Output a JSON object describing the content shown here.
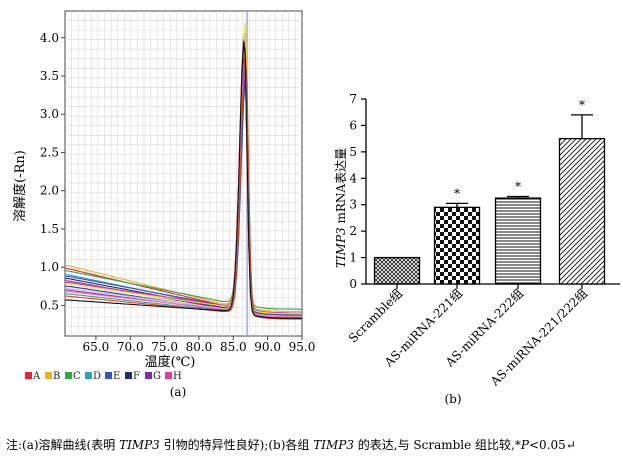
{
  "chart_data": [
    {
      "type": "line",
      "panel_label": "(a)",
      "title": "",
      "xlabel": "温度(℃)",
      "ylabel": "溶解度(-Rn)",
      "xlim": [
        60.5,
        95.0
      ],
      "ylim": [
        0.1,
        4.35
      ],
      "grid": true,
      "xticks": [
        "65.0",
        "70.0",
        "75.0",
        "80.0",
        "85.0",
        "90.0",
        "95.0"
      ],
      "xtick_values": [
        65,
        70,
        75,
        80,
        85,
        90,
        95
      ],
      "yticks": [
        "0.5",
        "1.0",
        "1.5",
        "2.0",
        "2.5",
        "3.0",
        "3.5",
        "4.0"
      ],
      "ytick_values": [
        0.5,
        1.0,
        1.5,
        2.0,
        2.5,
        3.0,
        3.5,
        4.0
      ],
      "reference_line_x": 87.0,
      "legend_position": "bottom",
      "legend": [
        {
          "label": "A",
          "color": "#e8232e"
        },
        {
          "label": "B",
          "color": "#f0b21a"
        },
        {
          "label": "C",
          "color": "#2aa84a"
        },
        {
          "label": "D",
          "color": "#22a6b8"
        },
        {
          "label": "E",
          "color": "#2f55c8"
        },
        {
          "label": "F",
          "color": "#202a78"
        },
        {
          "label": "G",
          "color": "#7b2fa6"
        },
        {
          "label": "H",
          "color": "#e8369b"
        }
      ],
      "series_colors": [
        "#e8232e",
        "#f0b21a",
        "#2aa84a",
        "#22a6b8",
        "#2f55c8",
        "#202a78",
        "#7b2fa6",
        "#e8369b",
        "#f6e51a",
        "#1f3fbf",
        "#c8c8c8",
        "#8a2be2",
        "#ff6fa8",
        "#3aa0a0",
        "#d8451f",
        "#111111"
      ],
      "series_params": [
        {
          "start": 0.98,
          "base": 0.5,
          "peak": 4.05
        },
        {
          "start": 1.02,
          "base": 0.52,
          "peak": 3.95
        },
        {
          "start": 0.95,
          "base": 0.55,
          "peak": 4.15
        },
        {
          "start": 0.9,
          "base": 0.48,
          "peak": 3.7
        },
        {
          "start": 0.88,
          "base": 0.5,
          "peak": 3.6
        },
        {
          "start": 0.85,
          "base": 0.47,
          "peak": 3.88
        },
        {
          "start": 0.82,
          "base": 0.46,
          "peak": 3.8
        },
        {
          "start": 0.8,
          "base": 0.5,
          "peak": 3.52
        },
        {
          "start": 0.78,
          "base": 0.49,
          "peak": 4.2
        },
        {
          "start": 0.75,
          "base": 0.45,
          "peak": 3.45
        },
        {
          "start": 0.72,
          "base": 0.46,
          "peak": 3.9
        },
        {
          "start": 0.7,
          "base": 0.44,
          "peak": 3.98
        },
        {
          "start": 0.68,
          "base": 0.45,
          "peak": 3.75
        },
        {
          "start": 0.65,
          "base": 0.43,
          "peak": 3.65
        },
        {
          "start": 0.62,
          "base": 0.42,
          "peak": 3.85
        },
        {
          "start": 0.57,
          "base": 0.43,
          "peak": 4.0
        }
      ]
    },
    {
      "type": "bar",
      "panel_label": "(b)",
      "title": "",
      "xlabel": "",
      "ylabel_italic": "TIMP3",
      "ylabel_rest": " mRNA表达量",
      "ylim": [
        0,
        7
      ],
      "yticks": [
        "0",
        "1",
        "2",
        "3",
        "4",
        "5",
        "6",
        "7"
      ],
      "ytick_values": [
        0,
        1,
        2,
        3,
        4,
        5,
        6,
        7
      ],
      "categories": [
        "Scramble组",
        "AS-miRNA-221组",
        "AS-miRNA-222组",
        "AS-miRNA-221/222组"
      ],
      "values": [
        1.0,
        2.9,
        3.25,
        5.5
      ],
      "errors": [
        0.0,
        0.15,
        0.06,
        0.9
      ],
      "significance": [
        "",
        "*",
        "*",
        "*"
      ],
      "patterns": [
        "crosshatch",
        "checker",
        "horizontal",
        "diagonal"
      ]
    }
  ],
  "caption": {
    "p1": "注:(a)溶解曲线(表明 ",
    "i1": "TIMP3",
    "p2": " 引物的特异性良好);(b)各组 ",
    "i2": "TIMP3",
    "p3": " 的表达,与 Scramble 组比较,*",
    "i3": "P",
    "p4": "<0.05↵"
  }
}
